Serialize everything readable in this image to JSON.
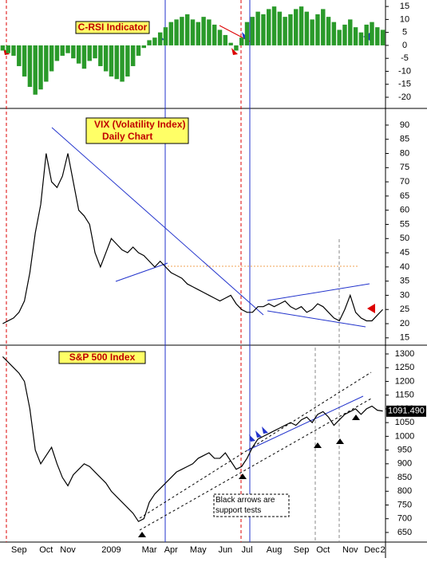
{
  "chart_data": [
    {
      "type": "bar",
      "title": "C-RSI Indicator",
      "color": "#2a9a2a",
      "values": [
        -2,
        -3,
        -4,
        -8,
        -12,
        -16,
        -19,
        -17,
        -14,
        -10,
        -6,
        -4,
        -3,
        -5,
        -7,
        -9,
        -6,
        -5,
        -8,
        -10,
        -12,
        -13,
        -14,
        -12,
        -8,
        -4,
        -1,
        2,
        3,
        5,
        7,
        9,
        10,
        11,
        12,
        10,
        9,
        11,
        10,
        8,
        6,
        4,
        1,
        -2,
        3,
        9,
        11,
        13,
        12,
        14,
        15,
        13,
        11,
        12,
        14,
        15,
        13,
        10,
        12,
        14,
        11,
        9,
        6,
        8,
        10,
        7,
        5,
        8,
        9,
        7,
        6
      ],
      "ylim": [
        -24,
        17.5
      ],
      "yticks": [
        15,
        10,
        5,
        0,
        -5,
        -10,
        -15,
        -20
      ]
    },
    {
      "type": "line",
      "title": "VIX (Volatility Index)",
      "subtitle": "Daily Chart",
      "color": "#000000",
      "values": [
        20,
        21,
        22,
        24,
        28,
        38,
        52,
        62,
        80,
        70,
        68,
        72,
        80,
        70,
        60,
        58,
        55,
        45,
        40,
        45,
        50,
        48,
        46,
        45,
        47,
        45,
        44,
        42,
        40,
        42,
        40,
        38,
        37,
        36,
        34,
        33,
        32,
        31,
        30,
        29,
        28,
        29,
        30,
        27,
        25,
        24,
        24,
        26,
        26,
        27,
        26,
        27,
        28,
        26,
        25,
        26,
        24,
        25,
        27,
        26,
        24,
        22,
        21,
        25,
        30,
        24,
        22,
        21,
        21,
        23,
        25
      ],
      "ylim": [
        12.7,
        95.6
      ],
      "yticks": [
        15,
        20,
        25,
        30,
        35,
        40,
        45,
        50,
        55,
        60,
        65,
        70,
        75,
        80,
        85,
        90
      ]
    },
    {
      "type": "line",
      "title": "S&P 500 Index",
      "annotation": "Black arrows are support tests",
      "color": "#000000",
      "last_value": 1091.49,
      "last_value_label": "1091.490",
      "categories": [
        null,
        null,
        null,
        "Sep",
        null,
        null,
        null,
        null,
        "Oct",
        null,
        null,
        null,
        "Nov",
        null,
        null,
        null,
        null,
        null,
        null,
        null,
        "2009",
        null,
        null,
        null,
        null,
        null,
        null,
        "Mar",
        null,
        null,
        null,
        "Apr",
        null,
        null,
        null,
        null,
        "May",
        null,
        null,
        null,
        null,
        "Jun",
        null,
        null,
        null,
        "Jul",
        null,
        null,
        null,
        null,
        "Aug",
        null,
        null,
        null,
        null,
        "Sep",
        null,
        null,
        null,
        "Oct",
        null,
        null,
        null,
        null,
        "Nov",
        null,
        null,
        null,
        "Dec",
        null,
        "2"
      ],
      "values": [
        1290,
        1270,
        1250,
        1230,
        1200,
        1100,
        950,
        900,
        930,
        960,
        900,
        850,
        820,
        860,
        880,
        900,
        890,
        870,
        850,
        830,
        800,
        780,
        760,
        740,
        720,
        690,
        700,
        760,
        790,
        810,
        830,
        850,
        870,
        880,
        890,
        900,
        920,
        930,
        940,
        920,
        920,
        940,
        910,
        880,
        890,
        920,
        960,
        990,
        1000,
        1010,
        1020,
        1030,
        1040,
        1050,
        1040,
        1060,
        1070,
        1050,
        1080,
        1090,
        1070,
        1040,
        1060,
        1080,
        1090,
        1100,
        1080,
        1100,
        1110,
        1095,
        1092
      ],
      "ylim": [
        615,
        1329
      ],
      "yticks": [
        650,
        700,
        750,
        800,
        850,
        900,
        950,
        1000,
        1050,
        1100,
        1150,
        1200,
        1250,
        1300
      ]
    }
  ]
}
